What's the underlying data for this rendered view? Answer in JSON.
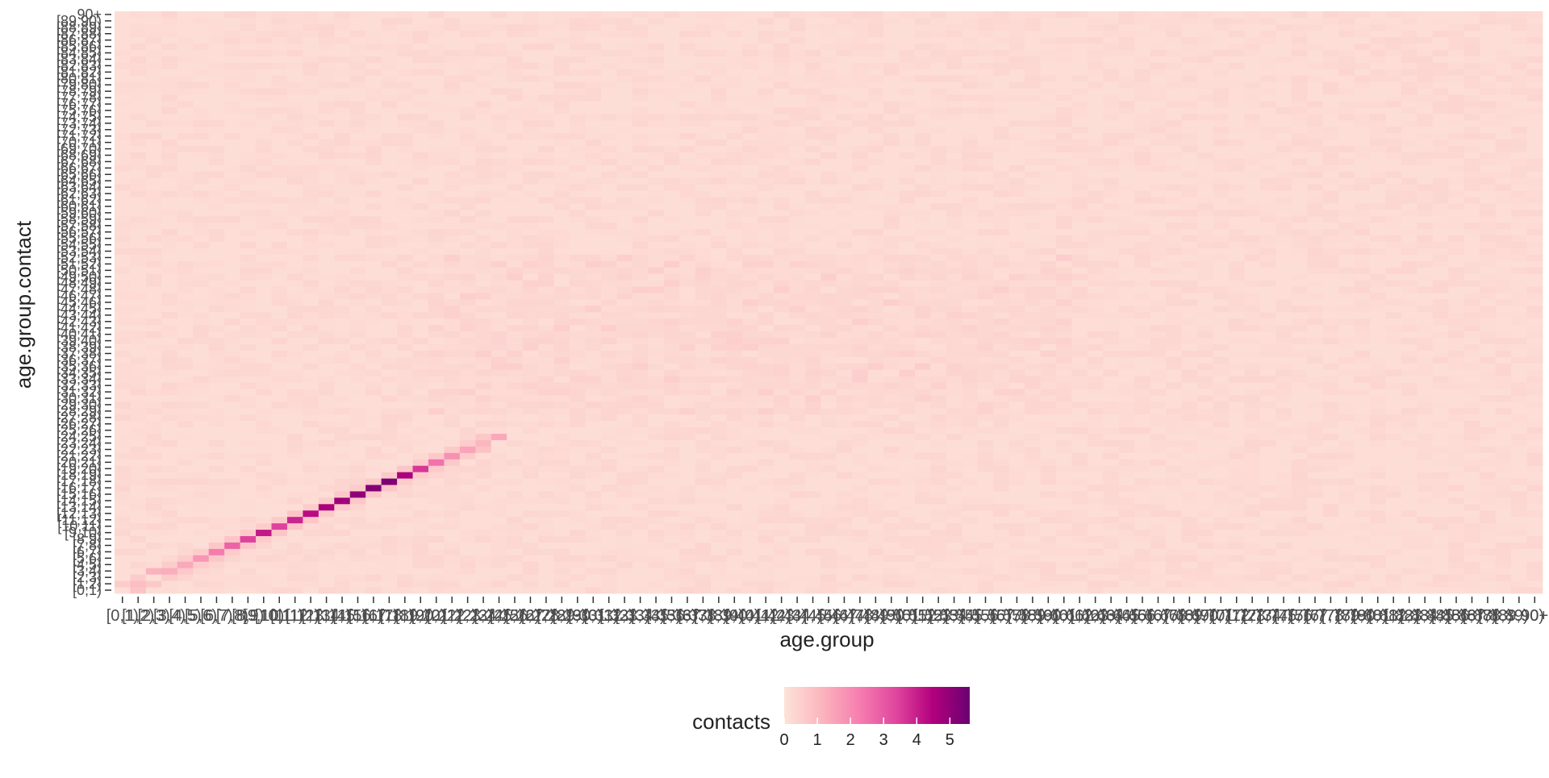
{
  "chart_data": {
    "type": "heatmap",
    "title": "",
    "xlabel": "age.group",
    "ylabel": "age.group.contact",
    "x_categories": [
      "[0,1)",
      "[1,2)",
      "[2,3)",
      "[3,4)",
      "[4,5)",
      "[5,6)",
      "[6,7)",
      "[7,8)",
      "[8,9)",
      "[9,10)",
      "[10,11)",
      "[11,12)",
      "[12,13)",
      "[13,14)",
      "[14,15)",
      "[15,16)",
      "[16,17)",
      "[17,18)",
      "[18,19)",
      "[19,20)",
      "[20,21)",
      "[21,22)",
      "[22,23)",
      "[23,24)",
      "[24,25)",
      "[25,26)",
      "[26,27)",
      "[27,28)",
      "[28,29)",
      "[29,30)",
      "[30,31)",
      "[31,32)",
      "[32,33)",
      "[33,34)",
      "[34,35)",
      "[35,36)",
      "[36,37)",
      "[37,38)",
      "[38,39)",
      "[39,40)",
      "[40,41)",
      "[41,42)",
      "[42,43)",
      "[43,44)",
      "[44,45)",
      "[45,46)",
      "[46,47)",
      "[47,48)",
      "[48,49)",
      "[49,50)",
      "[50,51)",
      "[51,52)",
      "[52,53)",
      "[53,54)",
      "[54,55)",
      "[55,56)",
      "[56,57)",
      "[57,58)",
      "[58,59)",
      "[59,60)",
      "[60,61)",
      "[61,62)",
      "[62,63)",
      "[63,64)",
      "[64,65)",
      "[65,66)",
      "[66,67)",
      "[67,68)",
      "[68,69)",
      "[69,70)",
      "[70,71)",
      "[71,72)",
      "[72,73)",
      "[73,74)",
      "[74,75)",
      "[75,76)",
      "[76,77)",
      "[77,78)",
      "[78,79)",
      "[79,80)",
      "[80,81)",
      "[81,82)",
      "[82,83)",
      "[83,84)",
      "[84,85)",
      "[85,86)",
      "[86,87)",
      "[87,88)",
      "[88,89)",
      "[89,90)",
      "90+"
    ],
    "y_categories": [
      "[0,1)",
      "[1,2)",
      "[2,3)",
      "[3,4)",
      "[4,5)",
      "[5,6)",
      "[6,7)",
      "[7,8)",
      "[8,9)",
      "[9,10)",
      "[10,11)",
      "[11,12)",
      "[12,13)",
      "[13,14)",
      "[14,15)",
      "[15,16)",
      "[16,17)",
      "[17,18)",
      "[18,19)",
      "[19,20)",
      "[20,21)",
      "[21,22)",
      "[22,23)",
      "[23,24)",
      "[24,25)",
      "[25,26)",
      "[26,27)",
      "[27,28)",
      "[28,29)",
      "[29,30)",
      "[30,31)",
      "[31,32)",
      "[32,33)",
      "[33,34)",
      "[34,35)",
      "[35,36)",
      "[36,37)",
      "[37,38)",
      "[38,39)",
      "[39,40)",
      "[40,41)",
      "[41,42)",
      "[42,43)",
      "[43,44)",
      "[44,45)",
      "[45,46)",
      "[46,47)",
      "[47,48)",
      "[48,49)",
      "[49,50)",
      "[50,51)",
      "[51,52)",
      "[52,53)",
      "[53,54)",
      "[54,55)",
      "[55,56)",
      "[56,57)",
      "[57,58)",
      "[58,59)",
      "[59,60)",
      "[60,61)",
      "[61,62)",
      "[62,63)",
      "[63,64)",
      "[64,65)",
      "[65,66)",
      "[66,67)",
      "[67,68)",
      "[68,69)",
      "[69,70)",
      "[70,71)",
      "[71,72)",
      "[72,73)",
      "[73,74)",
      "[74,75)",
      "[75,76)",
      "[76,77)",
      "[77,78)",
      "[78,79)",
      "[79,80)",
      "[80,81)",
      "[81,82)",
      "[82,83)",
      "[83,84)",
      "[84,85)",
      "[85,86)",
      "[86,87)",
      "[87,88)",
      "[88,89)",
      "[89,90)",
      "90+"
    ],
    "diagonal_peak_values": [
      {
        "x": "[1,2)",
        "y": "[1,2)",
        "value": 0.9
      },
      {
        "x": "[2,3)",
        "y": "[3,4)",
        "value": 1.2
      },
      {
        "x": "[3,4)",
        "y": "[3,4)",
        "value": 1.3
      },
      {
        "x": "[4,5)",
        "y": "[4,5)",
        "value": 1.4
      },
      {
        "x": "[5,6)",
        "y": "[5,6)",
        "value": 1.8
      },
      {
        "x": "[6,7)",
        "y": "[6,7)",
        "value": 2.3
      },
      {
        "x": "[7,8)",
        "y": "[7,8)",
        "value": 2.8
      },
      {
        "x": "[8,9)",
        "y": "[8,9)",
        "value": 3.4
      },
      {
        "x": "[9,10)",
        "y": "[9,10)",
        "value": 4.1
      },
      {
        "x": "[10,11)",
        "y": "[10,11)",
        "value": 3.4
      },
      {
        "x": "[11,12)",
        "y": "[11,12)",
        "value": 3.9
      },
      {
        "x": "[12,13)",
        "y": "[12,13)",
        "value": 4.3
      },
      {
        "x": "[13,14)",
        "y": "[13,14)",
        "value": 4.6
      },
      {
        "x": "[14,15)",
        "y": "[14,15)",
        "value": 4.8
      },
      {
        "x": "[15,16)",
        "y": "[15,16)",
        "value": 5.0
      },
      {
        "x": "[16,17)",
        "y": "[16,17)",
        "value": 5.2
      },
      {
        "x": "[17,18)",
        "y": "[17,18)",
        "value": 5.3
      },
      {
        "x": "[18,19)",
        "y": "[18,19)",
        "value": 4.6
      },
      {
        "x": "[19,20)",
        "y": "[19,20)",
        "value": 3.6
      },
      {
        "x": "[20,21)",
        "y": "[20,21)",
        "value": 2.5
      },
      {
        "x": "[21,22)",
        "y": "[21,22)",
        "value": 1.9
      },
      {
        "x": "[22,23)",
        "y": "[22,23)",
        "value": 1.5
      },
      {
        "x": "[23,24)",
        "y": "[23,24)",
        "value": 1.1
      },
      {
        "x": "[24,25)",
        "y": "[24,25)",
        "value": 1.4
      }
    ],
    "background_value_range": [
      0,
      1.5
    ],
    "color_scale": {
      "name": "contacts",
      "min": 0,
      "max": 5.6,
      "ticks": [
        0,
        1,
        2,
        3,
        4,
        5
      ],
      "colors": [
        "#fde3d9",
        "#fbb6be",
        "#f77fb0",
        "#e0479e",
        "#b3007e",
        "#6a0170"
      ]
    },
    "legend_position": "bottom",
    "grid": false
  }
}
